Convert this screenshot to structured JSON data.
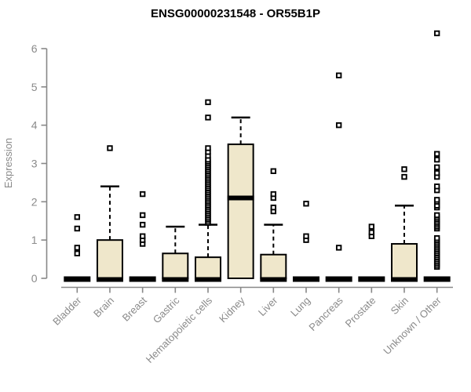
{
  "title": "ENSG00000231548 - OR55B1P",
  "colors": {
    "background": "#FFFFFF",
    "box_fill": "#EFE7CB",
    "box_stroke": "#000000",
    "median_color": "#000000",
    "outlier_color": "#000000",
    "axis_color": "#888888",
    "tick_text_color": "#8A8A8A",
    "title_color": "#000000"
  },
  "chart_data": {
    "type": "boxplot",
    "title": "ENSG00000231548 - OR55B1P",
    "xlabel": "",
    "ylabel": "Expression",
    "ylim": [
      0,
      6.6
    ],
    "yticks": [
      0,
      1,
      2,
      3,
      4,
      5,
      6
    ],
    "grid": false,
    "legend": false,
    "categories": [
      "Bladder",
      "Brain",
      "Breast",
      "Gastric",
      "Hematopoietic cells",
      "Kidney",
      "Liver",
      "Lung",
      "Pancreas",
      "Prostate",
      "Skin",
      "Unknown / Other"
    ],
    "series": [
      {
        "category": "Bladder",
        "min": 0,
        "q1": 0,
        "median": 0,
        "q3": 0,
        "max": 0,
        "outliers": [
          0.65,
          0.8,
          1.3,
          1.6
        ]
      },
      {
        "category": "Brain",
        "min": 0,
        "q1": 0,
        "median": 0,
        "q3": 1.0,
        "max": 2.4,
        "outliers": [
          3.4
        ]
      },
      {
        "category": "Breast",
        "min": 0,
        "q1": 0,
        "median": 0,
        "q3": 0,
        "max": 0,
        "outliers": [
          0.9,
          1.0,
          1.1,
          1.4,
          1.65,
          2.2
        ]
      },
      {
        "category": "Gastric",
        "min": 0,
        "q1": 0,
        "median": 0,
        "q3": 0.65,
        "max": 1.35,
        "outliers": []
      },
      {
        "category": "Hematopoietic cells",
        "min": 0,
        "q1": 0,
        "median": 0,
        "q3": 0.55,
        "max": 1.4,
        "outliers": [
          1.45,
          1.5,
          1.55,
          1.6,
          1.65,
          1.7,
          1.75,
          1.8,
          1.85,
          1.9,
          1.95,
          2.0,
          2.05,
          2.1,
          2.15,
          2.2,
          2.25,
          2.3,
          2.35,
          2.4,
          2.45,
          2.5,
          2.55,
          2.6,
          2.65,
          2.7,
          2.75,
          2.8,
          2.85,
          2.9,
          2.95,
          3.0,
          3.05,
          3.1,
          3.2,
          3.3,
          3.4,
          4.2,
          4.6
        ]
      },
      {
        "category": "Kidney",
        "min": 0,
        "q1": 0,
        "median": 2.1,
        "q3": 3.5,
        "max": 4.2,
        "outliers": []
      },
      {
        "category": "Liver",
        "min": 0,
        "q1": 0,
        "median": 0,
        "q3": 0.62,
        "max": 1.4,
        "outliers": [
          1.75,
          1.85,
          2.1,
          2.2,
          2.8
        ]
      },
      {
        "category": "Lung",
        "min": 0,
        "q1": 0,
        "median": 0,
        "q3": 0,
        "max": 0,
        "outliers": [
          1.0,
          1.1,
          1.95
        ]
      },
      {
        "category": "Pancreas",
        "min": 0,
        "q1": 0,
        "median": 0,
        "q3": 0,
        "max": 0,
        "outliers": [
          0.8,
          4.0,
          5.3
        ]
      },
      {
        "category": "Prostate",
        "min": 0,
        "q1": 0,
        "median": 0,
        "q3": 0,
        "max": 0,
        "outliers": [
          1.1,
          1.2,
          1.35
        ]
      },
      {
        "category": "Skin",
        "min": 0,
        "q1": 0,
        "median": 0,
        "q3": 0.9,
        "max": 1.9,
        "outliers": [
          2.65,
          2.85
        ]
      },
      {
        "category": "Unknown / Other",
        "min": 0,
        "q1": 0,
        "median": 0,
        "q3": 0,
        "max": 0,
        "outliers": [
          0.3,
          0.35,
          0.4,
          0.45,
          0.5,
          0.55,
          0.6,
          0.65,
          0.7,
          0.75,
          0.8,
          0.85,
          0.9,
          0.95,
          1.0,
          1.05,
          1.3,
          1.35,
          1.4,
          1.45,
          1.5,
          1.55,
          1.6,
          1.65,
          1.85,
          1.9,
          2.0,
          2.05,
          2.3,
          2.4,
          2.65,
          2.75,
          2.9,
          3.1,
          3.25,
          6.4
        ]
      }
    ]
  }
}
